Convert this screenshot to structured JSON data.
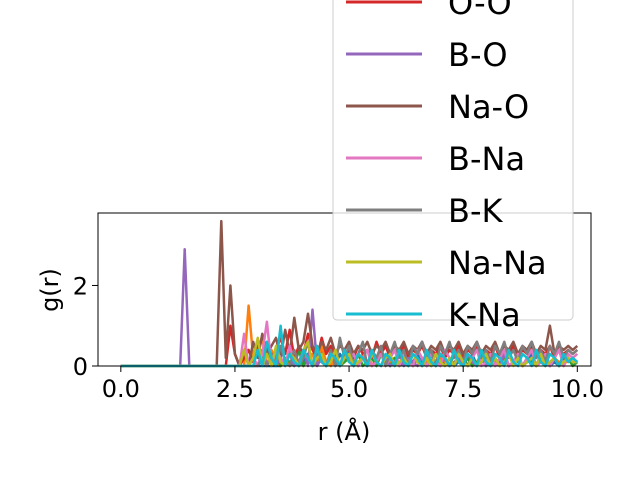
{
  "chart_data": {
    "type": "line",
    "title": "",
    "xlabel": "r (Å)",
    "ylabel": "g(r)",
    "xlim": [
      -0.5,
      10.3
    ],
    "ylim": [
      0,
      3.8
    ],
    "xticks": [
      0.0,
      2.5,
      5.0,
      7.5,
      10.0
    ],
    "xtick_labels": [
      "0.0",
      "2.5",
      "5.0",
      "7.5",
      "10.0"
    ],
    "yticks": [
      0,
      2
    ],
    "ytick_labels": [
      "0",
      "2"
    ],
    "legend_position": "upper right (overflowing top of axes)",
    "x": [
      0.0,
      0.1,
      0.2,
      0.3,
      0.4,
      0.5,
      0.6,
      0.7,
      0.8,
      0.9,
      1.0,
      1.1,
      1.2,
      1.3,
      1.4,
      1.5,
      1.6,
      1.7,
      1.8,
      1.9,
      2.0,
      2.1,
      2.2,
      2.3,
      2.4,
      2.5,
      2.6,
      2.7,
      2.8,
      2.9,
      3.0,
      3.1,
      3.2,
      3.3,
      3.4,
      3.5,
      3.6,
      3.7,
      3.8,
      3.9,
      4.0,
      4.1,
      4.2,
      4.3,
      4.4,
      4.5,
      4.6,
      4.7,
      4.8,
      4.9,
      5.0,
      5.1,
      5.2,
      5.3,
      5.4,
      5.5,
      5.6,
      5.7,
      5.8,
      5.9,
      6.0,
      6.1,
      6.2,
      6.3,
      6.4,
      6.5,
      6.6,
      6.7,
      6.8,
      6.9,
      7.0,
      7.1,
      7.2,
      7.3,
      7.4,
      7.5,
      7.6,
      7.7,
      7.8,
      7.9,
      8.0,
      8.1,
      8.2,
      8.3,
      8.4,
      8.5,
      8.6,
      8.7,
      8.8,
      8.9,
      9.0,
      9.1,
      9.2,
      9.3,
      9.4,
      9.5,
      9.6,
      9.7,
      9.8,
      9.9,
      10.0
    ],
    "series": [
      {
        "name": "",
        "color": "#1f77b4",
        "values": [
          0,
          0,
          0,
          0,
          0,
          0,
          0,
          0,
          0,
          0,
          0,
          0,
          0,
          0,
          0,
          0,
          0,
          0,
          0,
          0,
          0,
          0,
          0,
          0,
          0,
          0,
          0,
          0,
          0,
          0,
          0,
          0,
          0,
          0,
          0,
          0,
          0.1,
          0,
          0.2,
          0,
          0.1,
          0.3,
          0,
          0.1,
          0.4,
          0,
          0.2,
          0,
          0.3,
          0.1,
          0.4,
          0.2,
          0,
          0.3,
          0.1,
          0.2,
          0,
          0.3,
          0.2,
          0,
          0.1,
          0.3,
          0,
          0.2,
          0.1,
          0.3,
          0,
          0.2,
          0,
          0.1,
          0.3,
          0,
          0.2,
          0,
          0.1,
          0.2,
          0,
          0.3,
          0,
          0.1,
          0.2,
          0,
          0.1,
          0,
          0.3,
          0,
          0.1,
          0.2,
          0,
          0.1,
          0.3,
          0,
          0.1,
          0.2,
          0,
          0.1,
          0,
          0.2,
          0.1,
          0.2,
          0.1
        ]
      },
      {
        "name": "",
        "color": "#ff7f0e",
        "values": [
          0,
          0,
          0,
          0,
          0,
          0,
          0,
          0,
          0,
          0,
          0,
          0,
          0,
          0,
          0,
          0,
          0,
          0,
          0,
          0,
          0,
          0,
          0,
          0,
          0,
          0,
          0,
          0,
          1.5,
          0.2,
          0.3,
          0.7,
          0,
          0.4,
          0.1,
          0,
          0.2,
          0,
          0.3,
          0.1,
          0,
          0.2,
          0.3,
          0,
          0.5,
          0.1,
          0,
          0.2,
          0,
          0.3,
          0.1,
          0.2,
          0,
          0.3,
          0.1,
          0,
          0.2,
          0.3,
          0,
          0.1,
          0.2,
          0,
          0.3,
          0.1,
          0,
          0.2,
          0,
          0.1,
          0.3,
          0,
          0.2,
          0.1,
          0,
          0.3,
          0.1,
          0,
          0.2,
          0,
          0.1,
          0.3,
          0,
          0.2,
          0.1,
          0,
          0.2,
          0,
          0.1,
          0.3,
          0,
          0.1,
          0.2,
          0,
          0.1,
          0.3,
          0,
          0.2,
          0.1,
          0,
          0.2,
          0.1,
          0.1
        ]
      },
      {
        "name": "",
        "color": "#2ca02c",
        "values": [
          0,
          0,
          0,
          0,
          0,
          0,
          0,
          0,
          0,
          0,
          0,
          0,
          0,
          0,
          0,
          0,
          0,
          0,
          0,
          0,
          0,
          0,
          0,
          0,
          0,
          0,
          0,
          0,
          0,
          0.2,
          0.6,
          0.1,
          0.5,
          0,
          0.3,
          0,
          0.2,
          0.1,
          0,
          0.4,
          0,
          0.2,
          0,
          0.3,
          0.1,
          0,
          0.2,
          0.3,
          0,
          0.1,
          0.2,
          0,
          0.3,
          0,
          0.1,
          0.2,
          0,
          0.3,
          0.1,
          0,
          0.2,
          0,
          0.1,
          0.3,
          0,
          0.2,
          0.1,
          0,
          0.3,
          0,
          0.1,
          0.2,
          0,
          0.3,
          0.1,
          0,
          0.2,
          0,
          0.1,
          0.2,
          0,
          0.3,
          0,
          0.1,
          0.2,
          0,
          0.1,
          0.3,
          0,
          0.2,
          0.1,
          0,
          0.2,
          0,
          0.1,
          0.2,
          0,
          0.1,
          0.2,
          0,
          0.1
        ]
      },
      {
        "name": "O-O",
        "color": "#d62728",
        "values": [
          0,
          0,
          0,
          0,
          0,
          0,
          0,
          0,
          0,
          0,
          0,
          0,
          0,
          0,
          0,
          0,
          0,
          0,
          0,
          0,
          0,
          0,
          0,
          0,
          1.0,
          0.3,
          0,
          0.2,
          0.4,
          0.1,
          0.5,
          0.3,
          0.6,
          0.2,
          0.4,
          0.7,
          0.3,
          0.9,
          0.2,
          0.5,
          0.3,
          0.8,
          0.4,
          0.2,
          0.7,
          0.3,
          0.5,
          0.2,
          0.6,
          0.3,
          0.4,
          0.2,
          0.5,
          0.3,
          0.4,
          0.2,
          0.6,
          0.3,
          0.5,
          0.2,
          0.4,
          0.3,
          0.5,
          0.2,
          0.4,
          0.3,
          0.5,
          0.2,
          0.4,
          0.3,
          0.5,
          0.2,
          0.4,
          0.3,
          0.5,
          0.2,
          0.4,
          0.3,
          0.5,
          0.2,
          0.4,
          0.3,
          0.5,
          0.2,
          0.4,
          0.3,
          0.5,
          0.2,
          0.4,
          0.3,
          0.5,
          0.2,
          0.4,
          0.3,
          0.5,
          0.2,
          0.4,
          0.3,
          0.4,
          0.3,
          0.4
        ]
      },
      {
        "name": "B-O",
        "color": "#9467bd",
        "values": [
          0,
          0,
          0,
          0,
          0,
          0,
          0,
          0,
          0,
          0,
          0,
          0,
          0,
          0,
          2.9,
          0,
          0,
          0,
          0,
          0,
          0,
          0,
          0,
          0,
          0,
          0,
          0,
          0,
          0,
          0.2,
          0,
          0.4,
          0,
          0.3,
          0,
          0.2,
          0,
          0.3,
          0,
          0.1,
          0.4,
          0,
          1.4,
          0,
          0.2,
          0,
          0.3,
          0.1,
          0,
          0.2,
          0.3,
          0,
          0.1,
          0.2,
          0,
          0.3,
          0.1,
          0,
          0.2,
          0,
          0.1,
          0.3,
          0,
          0.2,
          0.1,
          0,
          0.2,
          0,
          0.1,
          0.3,
          0,
          0.2,
          0,
          0.1,
          0.2,
          0,
          0.3,
          0.1,
          0,
          0.2,
          0,
          0.1,
          0.2,
          0,
          0.3,
          0,
          0.1,
          0.2,
          0,
          0.1,
          0.2,
          0,
          0.3,
          0.1,
          0,
          0.2,
          0,
          0.1,
          0.2,
          0.1,
          0.1
        ]
      },
      {
        "name": "Na-O",
        "color": "#8c564b",
        "values": [
          0,
          0,
          0,
          0,
          0,
          0,
          0,
          0,
          0,
          0,
          0,
          0,
          0,
          0,
          0,
          0,
          0,
          0,
          0,
          0,
          0,
          0,
          3.6,
          0.2,
          2.0,
          0.3,
          0,
          0.4,
          0,
          0.6,
          0.2,
          0.8,
          0.3,
          0.5,
          0.7,
          0.2,
          0.9,
          0.3,
          1.2,
          0.4,
          0.6,
          1.3,
          0.5,
          0.3,
          0.6,
          0.4,
          0.7,
          0.3,
          0.5,
          0.4,
          0.6,
          0.3,
          0.5,
          0.4,
          0.6,
          0.3,
          0.5,
          0.4,
          0.6,
          0.3,
          0.5,
          0.4,
          0.6,
          0.3,
          0.5,
          0.4,
          0.6,
          0.3,
          0.5,
          0.4,
          0.6,
          0.3,
          0.5,
          0.4,
          0.6,
          0.3,
          0.5,
          0.4,
          0.6,
          0.3,
          0.5,
          0.4,
          0.6,
          0.3,
          0.5,
          0.4,
          0.6,
          0.3,
          0.5,
          0.4,
          0.6,
          0.3,
          0.5,
          0.4,
          1.0,
          0.3,
          0.5,
          0.4,
          0.5,
          0.4,
          0.5
        ]
      },
      {
        "name": "B-Na",
        "color": "#e377c2",
        "values": [
          0,
          0,
          0,
          0,
          0,
          0,
          0,
          0,
          0,
          0,
          0,
          0,
          0,
          0,
          0,
          0,
          0,
          0,
          0,
          0,
          0,
          0,
          0,
          0,
          0,
          0,
          0,
          0.8,
          0,
          0.2,
          0,
          0.3,
          1.1,
          0,
          0.4,
          0.2,
          0,
          0.5,
          0.1,
          0,
          0.3,
          0.2,
          0,
          0.4,
          0.1,
          0,
          0.3,
          0.2,
          0,
          0.4,
          0.1,
          0.3,
          0,
          0.2,
          0.4,
          0,
          0.1,
          0.3,
          0,
          0.2,
          0.4,
          0,
          0.3,
          0.1,
          0,
          0.4,
          0.2,
          0,
          0.3,
          0.1,
          0,
          0.4,
          0.2,
          0,
          0.3,
          0.1,
          0,
          0.2,
          0.4,
          0,
          0.1,
          0.3,
          0,
          0.2,
          0.4,
          0,
          0.1,
          0.3,
          0,
          0.2,
          0.4,
          0,
          0.1,
          0.3,
          0,
          0.2,
          0.4,
          0,
          0.3,
          0.2,
          0.3
        ]
      },
      {
        "name": "B-K",
        "color": "#7f7f7f",
        "values": [
          0,
          0,
          0,
          0,
          0,
          0,
          0,
          0,
          0,
          0,
          0,
          0,
          0,
          0,
          0,
          0,
          0,
          0,
          0,
          0,
          0,
          0,
          0,
          0,
          0,
          0,
          0,
          0,
          0,
          0,
          0,
          0.2,
          0,
          0.3,
          0,
          0.5,
          0.1,
          0,
          0.4,
          0,
          0.2,
          0.6,
          0,
          0.3,
          0.1,
          0,
          0.4,
          0,
          0.7,
          0.2,
          0.5,
          0,
          0.3,
          0.6,
          0,
          0.4,
          0.2,
          0.5,
          0,
          0.3,
          0.6,
          0.2,
          0.4,
          0,
          0.5,
          0.3,
          0.6,
          0.2,
          0.4,
          0,
          0.5,
          0.3,
          0.6,
          0.2,
          0.4,
          0.1,
          0.5,
          0.3,
          0.6,
          0.2,
          0.4,
          0.1,
          0.5,
          0.3,
          0.6,
          0.2,
          0.4,
          0.1,
          0.5,
          0.3,
          0.6,
          0.2,
          0.4,
          0.1,
          0.5,
          0.3,
          0.6,
          0.2,
          0.4,
          0.3,
          0.4
        ]
      },
      {
        "name": "Na-Na",
        "color": "#bcbd22",
        "values": [
          0,
          0,
          0,
          0,
          0,
          0,
          0,
          0,
          0,
          0,
          0,
          0,
          0,
          0,
          0,
          0,
          0,
          0,
          0,
          0,
          0,
          0,
          0,
          0,
          0,
          0,
          0,
          0.4,
          0,
          0.2,
          0.7,
          0,
          0.3,
          0,
          0.5,
          0.1,
          0,
          0.3,
          0.2,
          0,
          0.4,
          0.6,
          0,
          0.2,
          0.3,
          0,
          0.1,
          0.4,
          0,
          0.2,
          0.3,
          0,
          0.1,
          0.2,
          0,
          0.3,
          0.1,
          0,
          0.2,
          0.3,
          0,
          0.1,
          0.2,
          0,
          0.3,
          0.1,
          0,
          0.2,
          0,
          0.3,
          0.1,
          0,
          0.2,
          0,
          0.3,
          0.1,
          0,
          0.2,
          0,
          0.1,
          0.3,
          0,
          0.2,
          0,
          0.1,
          0.3,
          0,
          0.2,
          0,
          0.1,
          0.2,
          0,
          0.3,
          0,
          0.1,
          0.2,
          0,
          0.1,
          0.2,
          0.1,
          0.1
        ]
      },
      {
        "name": "K-Na",
        "color": "#17becf",
        "values": [
          0,
          0,
          0,
          0,
          0,
          0,
          0,
          0,
          0,
          0,
          0,
          0,
          0,
          0,
          0,
          0,
          0,
          0,
          0,
          0,
          0,
          0,
          0,
          0,
          0,
          0,
          0,
          0,
          0,
          0,
          0.4,
          0,
          0.6,
          0.2,
          0,
          1.0,
          0,
          0.3,
          0.1,
          0,
          0.4,
          0.2,
          0,
          0.5,
          0.1,
          0,
          0.3,
          0.2,
          0,
          0.4,
          0.1,
          0,
          0.3,
          0.2,
          0,
          0.4,
          0.1,
          0,
          0.3,
          0.2,
          0,
          0.4,
          0.1,
          0,
          0.3,
          0.2,
          0,
          0.4,
          0.1,
          0,
          0.3,
          0.2,
          0,
          0.4,
          0.1,
          0,
          0.3,
          0.2,
          0,
          0.4,
          0.1,
          0,
          0.3,
          0.2,
          0,
          0.4,
          0.1,
          0,
          0.3,
          0.2,
          0,
          0.4,
          0.1,
          0,
          0.3,
          0.2,
          0,
          0.3,
          0.1,
          0.2,
          0.1
        ]
      }
    ]
  }
}
